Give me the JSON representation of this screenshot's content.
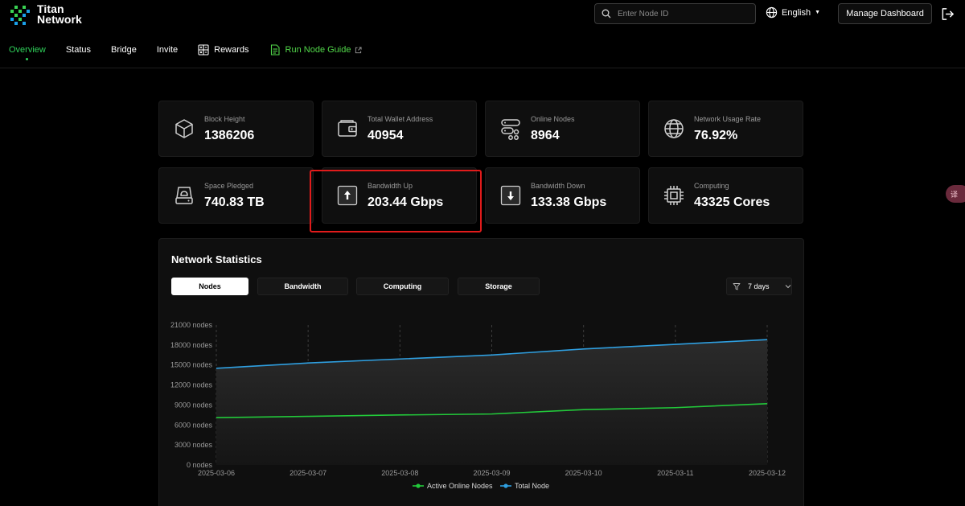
{
  "header": {
    "brand_line1": "Titan",
    "brand_line2": "Network",
    "search_placeholder": "Enter Node ID",
    "language": "English",
    "manage_button": "Manage Dashboard"
  },
  "nav": {
    "overview": "Overview",
    "status": "Status",
    "bridge": "Bridge",
    "invite": "Invite",
    "rewards": "Rewards",
    "run_node_guide": "Run Node Guide"
  },
  "stats": {
    "block_height": {
      "label": "Block Height",
      "value": "1386206"
    },
    "wallet": {
      "label": "Total Wallet Address",
      "value": "40954"
    },
    "online_nodes": {
      "label": "Online Nodes",
      "value": "8964"
    },
    "usage_rate": {
      "label": "Network Usage Rate",
      "value": "76.92%"
    },
    "space": {
      "label": "Space Pledged",
      "value": "740.83 TB"
    },
    "bw_up": {
      "label": "Bandwidth Up",
      "value": "203.44 Gbps"
    },
    "bw_down": {
      "label": "Bandwidth Down",
      "value": "133.38 Gbps"
    },
    "computing": {
      "label": "Computing",
      "value": "43325 Cores"
    }
  },
  "side_bubble": "译",
  "network_stats": {
    "title": "Network Statistics",
    "tabs": [
      "Nodes",
      "Bandwidth",
      "Computing",
      "Storage"
    ],
    "active_tab": "Nodes",
    "range": "7 days"
  },
  "colors": {
    "active_green": "#2fd15a",
    "highlight_red": "#e11b1b",
    "series_active": "#22c93a",
    "series_total": "#2f9fe0"
  },
  "chart_data": {
    "type": "line",
    "x": [
      "2025-03-06",
      "2025-03-07",
      "2025-03-08",
      "2025-03-09",
      "2025-03-10",
      "2025-03-11",
      "2025-03-12"
    ],
    "y_ticks": [
      0,
      3000,
      6000,
      9000,
      12000,
      15000,
      18000,
      21000
    ],
    "y_unit": "nodes",
    "ylim": [
      0,
      21000
    ],
    "series": [
      {
        "name": "Active Online Nodes",
        "color": "#22c93a",
        "values": [
          7100,
          7300,
          7500,
          7650,
          8300,
          8600,
          9200
        ]
      },
      {
        "name": "Total Node",
        "color": "#2f9fe0",
        "values": [
          14500,
          15300,
          15900,
          16500,
          17400,
          18100,
          18800
        ]
      }
    ],
    "grid": "vertical-dashed",
    "legend": "bottom-center"
  }
}
